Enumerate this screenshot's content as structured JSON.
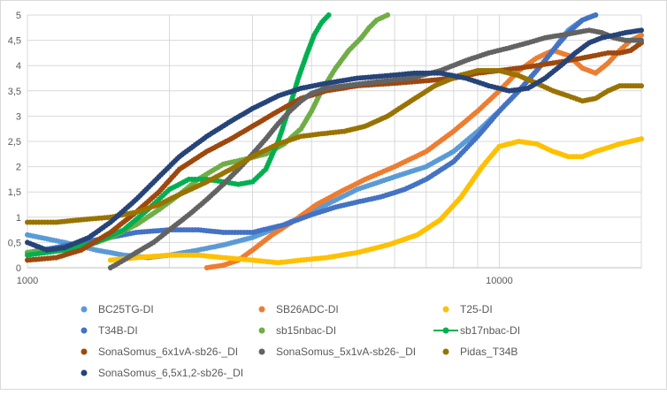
{
  "chart_data": {
    "type": "scatter",
    "x_scale": "log",
    "xlim": [
      1000,
      20000
    ],
    "ylim": [
      0,
      5
    ],
    "x_tick_labels": [
      {
        "value": 1000,
        "label": "1000"
      },
      {
        "value": 10000,
        "label": "10000"
      }
    ],
    "y_ticks": [
      0,
      0.5,
      1,
      1.5,
      2,
      2.5,
      3,
      3.5,
      4,
      4.5,
      5
    ],
    "y_tick_labels": [
      "0",
      "0,5",
      "1",
      "1,5",
      "2",
      "2,5",
      "3",
      "3,5",
      "4",
      "4,5",
      "5"
    ],
    "grid": true,
    "legend_position": "bottom",
    "series": [
      {
        "name": "BC25TG-DI",
        "color": "#5b9bd5",
        "marker": "dot",
        "x": [
          1000,
          1200,
          1400,
          1600,
          1800,
          2000,
          2300,
          2600,
          3000,
          3400,
          3800,
          4300,
          5000,
          6000,
          7000,
          8000,
          9000,
          10000,
          11000,
          12000,
          13000,
          14000,
          15000,
          16000
        ],
        "y": [
          0.65,
          0.5,
          0.35,
          0.25,
          0.2,
          0.25,
          0.35,
          0.45,
          0.6,
          0.8,
          1.0,
          1.25,
          1.55,
          1.8,
          2.0,
          2.3,
          2.7,
          3.1,
          3.5,
          3.9,
          4.3,
          4.7,
          4.9,
          5.0
        ]
      },
      {
        "name": "SB26ADC-DI",
        "color": "#ed7d31",
        "marker": "dot",
        "x": [
          2400,
          2600,
          2800,
          3000,
          3300,
          3700,
          4100,
          4600,
          5200,
          6000,
          7000,
          8000,
          9000,
          10000,
          11000,
          12000,
          13000,
          14000,
          15000,
          16000,
          17000,
          18000,
          19000,
          20000
        ],
        "y": [
          0.0,
          0.05,
          0.15,
          0.35,
          0.65,
          0.95,
          1.25,
          1.5,
          1.75,
          2.0,
          2.3,
          2.7,
          3.1,
          3.5,
          3.9,
          4.15,
          4.3,
          4.2,
          3.95,
          3.85,
          4.05,
          4.3,
          4.5,
          4.6
        ]
      },
      {
        "name": "T25-DI",
        "color": "#ffc000",
        "marker": "dot",
        "x": [
          1500,
          1700,
          2000,
          2300,
          2600,
          3000,
          3400,
          3800,
          4300,
          5000,
          5800,
          6700,
          7500,
          8300,
          9200,
          10000,
          11000,
          12000,
          13000,
          14000,
          15000,
          16000,
          18000,
          20000
        ],
        "y": [
          0.15,
          0.2,
          0.25,
          0.25,
          0.2,
          0.15,
          0.1,
          0.15,
          0.2,
          0.3,
          0.45,
          0.65,
          0.95,
          1.4,
          2.0,
          2.4,
          2.5,
          2.45,
          2.3,
          2.2,
          2.2,
          2.3,
          2.45,
          2.55
        ]
      },
      {
        "name": "T34B-DI",
        "color": "#4472c4",
        "marker": "dot",
        "x": [
          1000,
          1150,
          1300,
          1500,
          1700,
          2000,
          2300,
          2600,
          3000,
          3500,
          4000,
          4500,
          5000,
          5600,
          6300,
          7000,
          8000,
          9000,
          10000,
          11000,
          12000,
          13000,
          14000,
          15000,
          16000
        ],
        "y": [
          0.3,
          0.4,
          0.5,
          0.6,
          0.7,
          0.75,
          0.75,
          0.7,
          0.7,
          0.85,
          1.05,
          1.2,
          1.3,
          1.4,
          1.55,
          1.75,
          2.1,
          2.6,
          3.1,
          3.5,
          3.9,
          4.3,
          4.65,
          4.9,
          5.0
        ]
      },
      {
        "name": "sb15nbac-DI",
        "color": "#70ad47",
        "marker": "dot",
        "x": [
          1000,
          1150,
          1300,
          1500,
          1700,
          1900,
          2100,
          2300,
          2600,
          2900,
          3200,
          3500,
          3800,
          4000,
          4200,
          4500,
          4800,
          5100,
          5300,
          5500,
          5800
        ],
        "y": [
          0.3,
          0.35,
          0.4,
          0.6,
          0.85,
          1.15,
          1.45,
          1.75,
          2.05,
          2.15,
          2.25,
          2.45,
          2.75,
          3.1,
          3.5,
          3.95,
          4.3,
          4.55,
          4.75,
          4.9,
          5.0
        ]
      },
      {
        "name": "sb17nbac-DI",
        "color": "#00b050",
        "marker": "line-dot",
        "x": [
          1000,
          1200,
          1400,
          1600,
          1800,
          2000,
          2200,
          2400,
          2600,
          2800,
          3000,
          3200,
          3400,
          3600,
          3750,
          3900,
          4050,
          4200,
          4350
        ],
        "y": [
          0.25,
          0.35,
          0.5,
          0.75,
          1.15,
          1.55,
          1.75,
          1.75,
          1.7,
          1.65,
          1.7,
          1.95,
          2.5,
          3.2,
          3.75,
          4.2,
          4.6,
          4.85,
          5.0
        ]
      },
      {
        "name": "SonaSomus_6x1vA-sb26-_DI",
        "color": "#9e480e",
        "marker": "dot",
        "x": [
          1000,
          1150,
          1300,
          1500,
          1700,
          1900,
          2100,
          2400,
          2700,
          3000,
          3400,
          3800,
          4300,
          5000,
          6000,
          7000,
          8000,
          9000,
          10000,
          11000,
          12000,
          13000,
          14000,
          15000,
          16000,
          17000,
          18000,
          19000,
          20000
        ],
        "y": [
          0.15,
          0.2,
          0.35,
          0.7,
          1.1,
          1.5,
          1.95,
          2.3,
          2.55,
          2.8,
          3.1,
          3.35,
          3.5,
          3.6,
          3.65,
          3.7,
          3.75,
          3.85,
          3.9,
          3.95,
          4.0,
          4.05,
          4.1,
          4.15,
          4.2,
          4.25,
          4.25,
          4.3,
          4.45
        ]
      },
      {
        "name": "SonaSomus_5x1vA-sb26-_DI",
        "color": "#636363",
        "marker": "dot",
        "x": [
          1500,
          1600,
          1700,
          1850,
          2000,
          2200,
          2400,
          2600,
          2800,
          3000,
          3200,
          3400,
          3600,
          3800,
          4000,
          4300,
          4700,
          5200,
          5800,
          6500,
          7500,
          8500,
          9500,
          10500,
          11500,
          12500,
          13500,
          14500,
          15500,
          16500,
          17500,
          18500,
          20000
        ],
        "y": [
          0.0,
          0.15,
          0.3,
          0.5,
          0.75,
          1.05,
          1.35,
          1.65,
          1.95,
          2.25,
          2.55,
          2.85,
          3.1,
          3.3,
          3.45,
          3.55,
          3.6,
          3.65,
          3.7,
          3.75,
          3.9,
          4.1,
          4.25,
          4.35,
          4.45,
          4.55,
          4.6,
          4.65,
          4.7,
          4.65,
          4.55,
          4.5,
          4.5
        ]
      },
      {
        "name": "Pidas_T34B",
        "color": "#997300",
        "marker": "dot",
        "x": [
          1000,
          1150,
          1300,
          1500,
          1700,
          1900,
          2100,
          2400,
          2700,
          3000,
          3400,
          3800,
          4200,
          4700,
          5200,
          5800,
          6500,
          7300,
          8200,
          9000,
          10000,
          11000,
          12000,
          13000,
          14000,
          15000,
          16000,
          17000,
          18000,
          19000,
          20000
        ],
        "y": [
          0.9,
          0.9,
          0.95,
          1.0,
          1.1,
          1.25,
          1.45,
          1.7,
          1.95,
          2.2,
          2.45,
          2.6,
          2.65,
          2.7,
          2.8,
          3.0,
          3.3,
          3.6,
          3.8,
          3.9,
          3.9,
          3.8,
          3.65,
          3.5,
          3.4,
          3.3,
          3.35,
          3.5,
          3.6,
          3.6,
          3.6
        ]
      },
      {
        "name": "SonaSomus_6,5x1,2-sb26-_DI",
        "color": "#264478",
        "marker": "dot",
        "x": [
          1000,
          1100,
          1200,
          1350,
          1500,
          1700,
          1900,
          2100,
          2400,
          2700,
          3000,
          3400,
          3800,
          4300,
          5000,
          5800,
          6600,
          7500,
          8500,
          9500,
          10500,
          11500,
          12500,
          13500,
          14500,
          15500,
          16500,
          17500,
          18500,
          20000
        ],
        "y": [
          0.5,
          0.35,
          0.4,
          0.6,
          0.9,
          1.35,
          1.8,
          2.2,
          2.6,
          2.9,
          3.15,
          3.4,
          3.55,
          3.65,
          3.75,
          3.8,
          3.85,
          3.85,
          3.75,
          3.6,
          3.5,
          3.55,
          3.75,
          4.0,
          4.25,
          4.45,
          4.55,
          4.6,
          4.65,
          4.7
        ]
      }
    ]
  }
}
